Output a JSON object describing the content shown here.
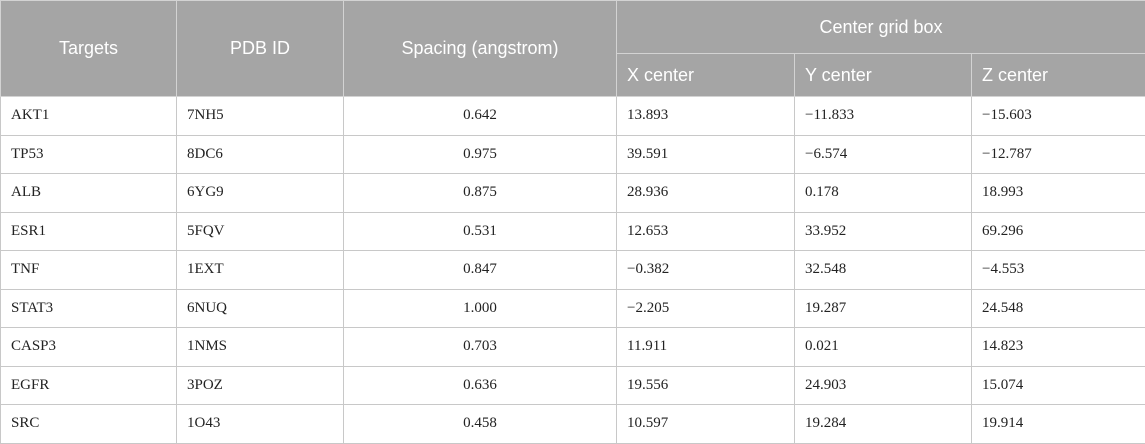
{
  "header": {
    "targets": "Targets",
    "pdb_id": "PDB ID",
    "spacing": "Spacing (angstrom)",
    "center_grid_box": "Center grid box",
    "x_center": "X center",
    "y_center": "Y center",
    "z_center": "Z center"
  },
  "rows": [
    {
      "target": "AKT1",
      "pdb": "7NH5",
      "spacing": "0.642",
      "x": "13.893",
      "y": "−11.833",
      "z": "−15.603"
    },
    {
      "target": "TP53",
      "pdb": "8DC6",
      "spacing": "0.975",
      "x": "39.591",
      "y": "−6.574",
      "z": "−12.787"
    },
    {
      "target": "ALB",
      "pdb": "6YG9",
      "spacing": "0.875",
      "x": "28.936",
      "y": "0.178",
      "z": "18.993"
    },
    {
      "target": "ESR1",
      "pdb": "5FQV",
      "spacing": "0.531",
      "x": "12.653",
      "y": "33.952",
      "z": "69.296"
    },
    {
      "target": "TNF",
      "pdb": "1EXT",
      "spacing": "0.847",
      "x": "−0.382",
      "y": "32.548",
      "z": "−4.553"
    },
    {
      "target": "STAT3",
      "pdb": "6NUQ",
      "spacing": "1.000",
      "x": "−2.205",
      "y": "19.287",
      "z": "24.548"
    },
    {
      "target": "CASP3",
      "pdb": "1NMS",
      "spacing": "0.703",
      "x": "11.911",
      "y": "0.021",
      "z": "14.823"
    },
    {
      "target": "EGFR",
      "pdb": "3POZ",
      "spacing": "0.636",
      "x": "19.556",
      "y": "24.903",
      "z": "15.074"
    },
    {
      "target": "SRC",
      "pdb": "1O43",
      "spacing": "0.458",
      "x": "10.597",
      "y": "19.284",
      "z": "19.914"
    }
  ]
}
